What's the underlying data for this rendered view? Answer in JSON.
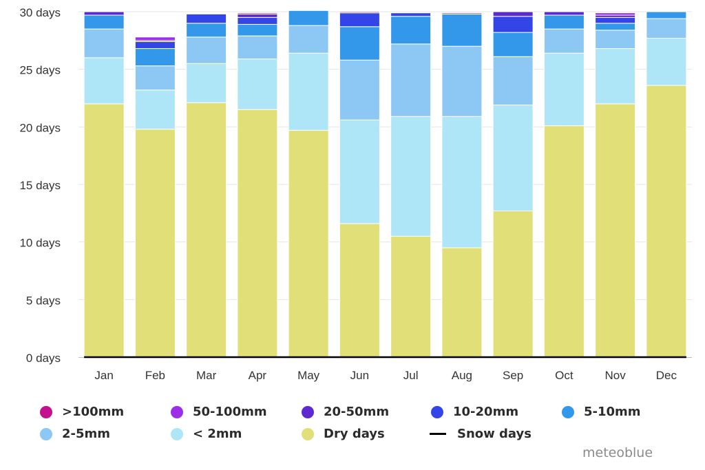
{
  "chart_data": {
    "type": "bar",
    "stacked": true,
    "categories": [
      "Jan",
      "Feb",
      "Mar",
      "Apr",
      "May",
      "Jun",
      "Jul",
      "Aug",
      "Sep",
      "Oct",
      "Nov",
      "Dec"
    ],
    "y_unit": "days",
    "ylim": [
      0,
      30
    ],
    "yticks": [
      0,
      5,
      10,
      15,
      20,
      25,
      30
    ],
    "ytick_labels": [
      "0 days",
      "5 days",
      "10 days",
      "15 days",
      "20 days",
      "25 days",
      "30 days"
    ],
    "grid": true,
    "legend_position": "bottom",
    "series": [
      {
        "name": "Dry days",
        "color": "#e0df78",
        "values": [
          22.0,
          19.8,
          22.1,
          21.5,
          19.7,
          11.6,
          10.5,
          9.5,
          12.7,
          20.1,
          22.0,
          23.6
        ]
      },
      {
        "name": "< 2mm",
        "color": "#aee6f7",
        "values": [
          4.0,
          3.4,
          3.4,
          4.4,
          6.7,
          9.0,
          10.4,
          11.4,
          9.2,
          6.3,
          4.8,
          4.1
        ]
      },
      {
        "name": "2-5mm",
        "color": "#8dc8f5",
        "values": [
          2.5,
          2.1,
          2.3,
          2.0,
          2.4,
          5.2,
          6.3,
          6.1,
          4.2,
          2.1,
          1.6,
          1.7
        ]
      },
      {
        "name": "5-10mm",
        "color": "#3498ea",
        "values": [
          1.2,
          1.5,
          1.2,
          1.0,
          1.3,
          2.9,
          2.4,
          2.8,
          2.1,
          1.2,
          0.6,
          0.6
        ]
      },
      {
        "name": "10-20mm",
        "color": "#3345e7",
        "values": [
          0.0,
          0.6,
          0.8,
          0.6,
          0.0,
          1.2,
          0.3,
          0.0,
          1.4,
          0.0,
          0.5,
          0.0
        ]
      },
      {
        "name": "20-50mm",
        "color": "#5c2ad0",
        "values": [
          0.3,
          0.1,
          0.0,
          0.3,
          0.0,
          0.0,
          0.0,
          0.0,
          0.4,
          0.3,
          0.2,
          0.0
        ]
      },
      {
        "name": "50-100mm",
        "color": "#9b2ee6",
        "values": [
          0.0,
          0.3,
          0.0,
          0.1,
          0.0,
          0.1,
          0.0,
          0.1,
          0.0,
          0.0,
          0.2,
          0.0
        ]
      },
      {
        "name": ">100mm",
        "color": "#c2108f",
        "values": [
          0,
          0,
          0,
          0,
          0,
          0,
          0,
          0,
          0,
          0,
          0,
          0
        ]
      }
    ],
    "snow_days": {
      "name": "Snow days",
      "color": "#000000",
      "values": [
        0,
        0,
        0,
        0,
        0,
        0,
        0,
        0,
        0,
        0,
        0,
        0
      ]
    }
  },
  "legend": {
    "items": [
      {
        "label": ">100mm",
        "color": "#c2108f",
        "kind": "dot"
      },
      {
        "label": "50-100mm",
        "color": "#9b2ee6",
        "kind": "dot"
      },
      {
        "label": "20-50mm",
        "color": "#5c2ad0",
        "kind": "dot"
      },
      {
        "label": "10-20mm",
        "color": "#3345e7",
        "kind": "dot"
      },
      {
        "label": "5-10mm",
        "color": "#3498ea",
        "kind": "dot"
      },
      {
        "label": "2-5mm",
        "color": "#8dc8f5",
        "kind": "dot"
      },
      {
        "label": "< 2mm",
        "color": "#aee6f7",
        "kind": "dot"
      },
      {
        "label": "Dry days",
        "color": "#e0df78",
        "kind": "dot"
      },
      {
        "label": "Snow days",
        "color": "#000000",
        "kind": "line"
      }
    ]
  },
  "credit": "meteoblue"
}
